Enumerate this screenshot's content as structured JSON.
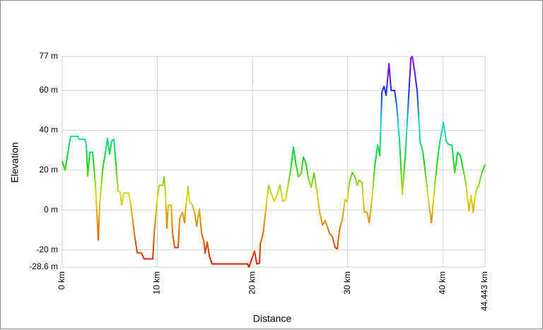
{
  "chart_data": {
    "type": "line",
    "xlabel": "Distance",
    "ylabel": "Elevation",
    "xlim": [
      0,
      44.443
    ],
    "ylim": [
      -28.6,
      77
    ],
    "xticks": [
      {
        "value": 0,
        "label": "0 km"
      },
      {
        "value": 10,
        "label": "10 km"
      },
      {
        "value": 20,
        "label": "20 km"
      },
      {
        "value": 30,
        "label": "30 km"
      },
      {
        "value": 40,
        "label": "40 km"
      },
      {
        "value": 44.443,
        "label": "44.443 km"
      }
    ],
    "yticks": [
      {
        "value": -28.6,
        "label": "-28.6 m"
      },
      {
        "value": -20,
        "label": "-20 m"
      },
      {
        "value": 0,
        "label": "0 m"
      },
      {
        "value": 20,
        "label": "20 m"
      },
      {
        "value": 40,
        "label": "40 m"
      },
      {
        "value": 60,
        "label": "60 m"
      },
      {
        "value": 77,
        "label": "77 m"
      }
    ],
    "grid": true,
    "colors": [
      "#a000d8",
      "#1830f0",
      "#18d8d8",
      "#18d018",
      "#d8d818",
      "#e07000",
      "#d81800"
    ],
    "series": [
      {
        "name": "Elevation",
        "x": [
          0,
          0.3,
          0.74,
          0.89,
          1.64,
          1.78,
          2.38,
          2.53,
          2.68,
          2.9,
          3.2,
          3.49,
          3.79,
          3.94,
          4.24,
          4.61,
          4.76,
          4.98,
          5.2,
          5.43,
          5.58,
          5.87,
          6.1,
          6.25,
          6.47,
          6.99,
          7.21,
          7.58,
          7.88,
          8.33,
          8.62,
          9.52,
          9.67,
          9.96,
          10.19,
          10.56,
          10.71,
          10.86,
          11.0,
          11.15,
          11.45,
          11.6,
          11.82,
          12.19,
          12.34,
          12.64,
          12.86,
          13.01,
          13.23,
          13.38,
          13.68,
          13.9,
          14.13,
          14.42,
          14.65,
          14.87,
          15.02,
          15.24,
          15.46,
          15.76,
          19.48,
          19.63,
          19.93,
          20.22,
          20.45,
          20.74,
          20.82,
          21.12,
          21.41,
          21.71,
          22.01,
          22.3,
          22.6,
          22.9,
          23.2,
          23.49,
          23.79,
          24.01,
          24.31,
          24.54,
          24.83,
          25.13,
          25.35,
          25.65,
          25.87,
          26.17,
          26.47,
          26.77,
          27.06,
          27.36,
          27.66,
          28.1,
          28.4,
          28.7,
          28.92,
          29.14,
          29.44,
          29.74,
          29.96,
          30.19,
          30.48,
          30.78,
          31.0,
          31.23,
          31.52,
          31.75,
          32.04,
          32.27,
          32.57,
          32.86,
          33.16,
          33.38,
          33.61,
          33.83,
          34.05,
          34.35,
          34.57,
          34.94,
          35.17,
          35.46,
          35.76,
          36.06,
          36.36,
          36.65,
          36.8,
          37.03,
          37.32,
          37.62,
          37.92,
          38.22,
          38.51,
          38.81,
          39.11,
          39.41,
          39.7,
          40.07,
          40.37,
          40.67,
          40.97,
          41.26,
          41.56,
          41.86,
          42.16,
          42.45,
          42.75,
          42.97,
          43.2,
          43.49,
          43.79,
          44.09,
          44.443
        ],
        "values": [
          24.5,
          20,
          33,
          37,
          37,
          35.5,
          35.5,
          33,
          17,
          29,
          29,
          13,
          -15,
          2.5,
          20,
          31,
          36,
          28,
          34.5,
          35.5,
          27,
          9.6,
          9,
          2.5,
          8.5,
          8.5,
          2.5,
          -11.7,
          -21.3,
          -21.6,
          -24.5,
          -24.5,
          -11.7,
          4,
          12.4,
          12.4,
          16.7,
          7.8,
          -9,
          2.5,
          2.5,
          -11.7,
          -18.8,
          -18.8,
          -4.6,
          -1,
          -6.4,
          2.5,
          11.7,
          4.3,
          2.5,
          -1,
          -8,
          0.4,
          -11.7,
          -15.3,
          -21.6,
          -16,
          -23,
          -27,
          -27,
          -28.6,
          -24.5,
          -20.6,
          -27,
          -26.6,
          -17,
          -11.7,
          0.7,
          12.4,
          7.8,
          4.3,
          7.8,
          12.4,
          4.3,
          5.3,
          13.8,
          20,
          31.6,
          23.8,
          16.7,
          18.5,
          26.6,
          23,
          16,
          11.4,
          18.5,
          9.6,
          -1,
          -7.5,
          -5.3,
          -11.7,
          -13.5,
          -18.8,
          -19.5,
          -10,
          -4.6,
          5.3,
          4.3,
          13.8,
          18.8,
          16.7,
          12.4,
          15,
          13.8,
          -1,
          -1,
          -6.4,
          6,
          22,
          32.7,
          27.3,
          59.3,
          62,
          57.5,
          73.5,
          60,
          60,
          52,
          34.4,
          7.8,
          27.3,
          52,
          76.3,
          77,
          70,
          59.3,
          34.4,
          29,
          16.7,
          4.3,
          -6.4,
          9.6,
          23.8,
          34.4,
          44,
          34.4,
          32.7,
          32.7,
          18.5,
          29,
          27.3,
          20,
          13,
          -0.4,
          7.5,
          -1,
          9.6,
          12.4,
          18.5,
          22.7
        ]
      }
    ]
  }
}
